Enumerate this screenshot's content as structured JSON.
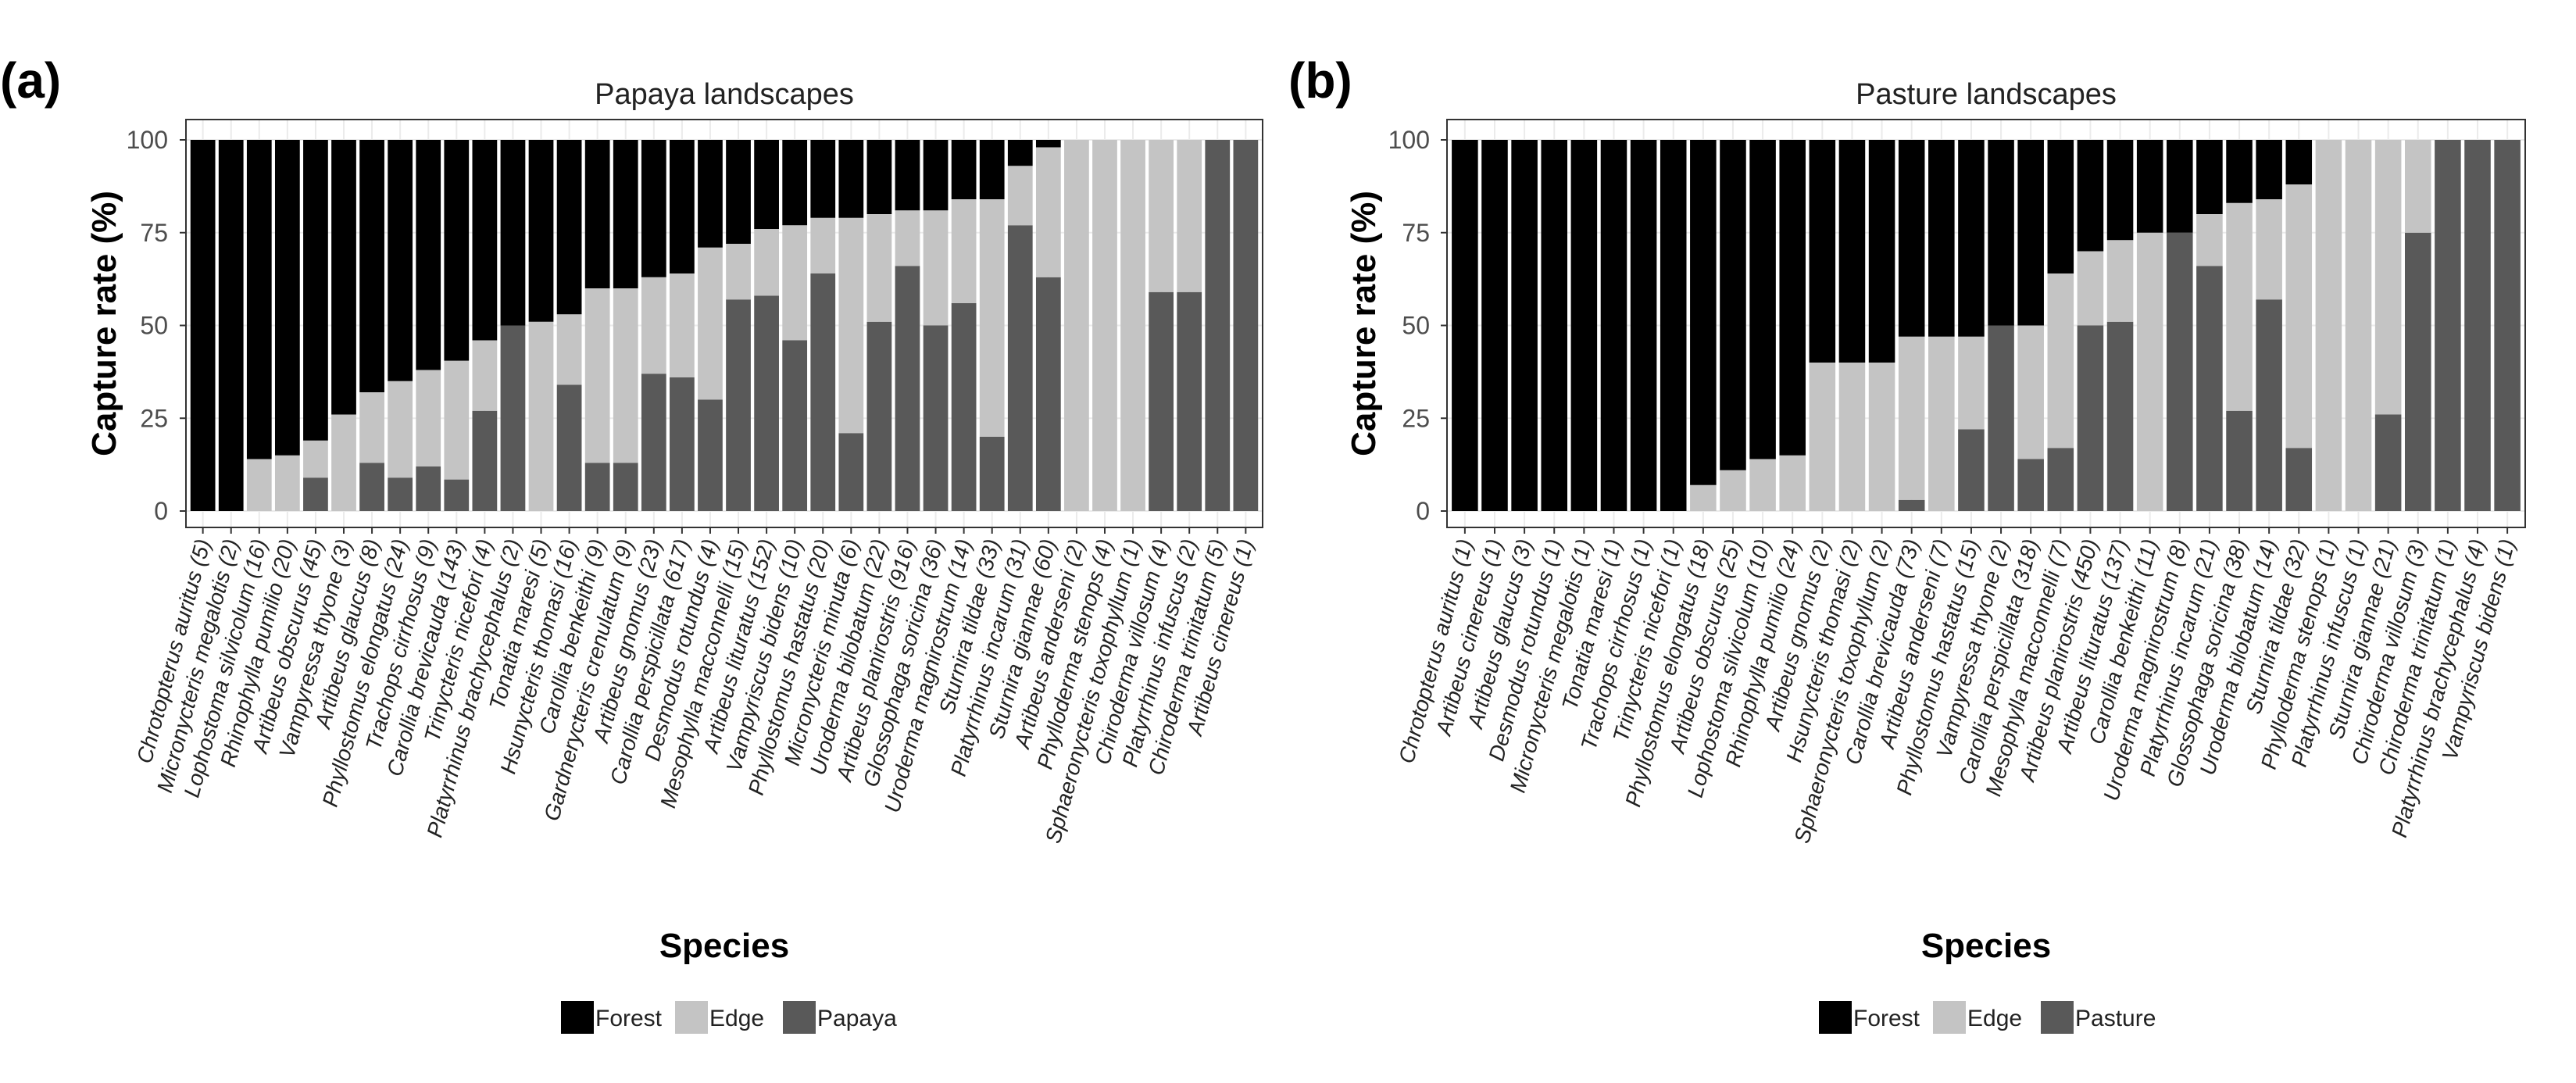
{
  "colors": {
    "Forest": "#000000",
    "Edge": "#c4c4c4",
    "Papaya": "#595959",
    "Pasture": "#595959"
  },
  "chart_data": [
    {
      "type": "bar",
      "stacked": true,
      "panel_label": "(a)",
      "title": "Papaya landscapes",
      "xlabel": "Species",
      "ylabel": "Capture rate (%)",
      "ylim": [
        0,
        100
      ],
      "yticks": [
        "0",
        "25",
        "50",
        "75",
        "100"
      ],
      "legend_position": "bottom",
      "legend": [
        "Forest",
        "Edge",
        "Papaya"
      ],
      "categories": [
        "Chrotopterus auritus (5)",
        "Micronycteris megalotis (2)",
        "Lophostoma silvicolum (16)",
        "Rhinophylla pumilio (20)",
        "Artibeus obscurus (45)",
        "Vampyressa thyone (3)",
        "Artibeus glaucus (8)",
        "Phyllostomus elongatus (24)",
        "Trachops cirrhosus (9)",
        "Carollia brevicauda (143)",
        "Trinycteris nicefori (4)",
        "Platyrrhinus brachycephalus (2)",
        "Tonatia maresi (5)",
        "Hsunycteris thomasi (16)",
        "Carollia benkeithi (9)",
        "Gardnerycteris crenulatum (9)",
        "Artibeus gnomus (23)",
        "Carollia perspicillata (617)",
        "Desmodus rotundus (4)",
        "Mesophylla macconnelli (15)",
        "Artibeus lituratus (152)",
        "Vampyriscus bidens (10)",
        "Phyllostomus hastatus (20)",
        "Micronycteris minuta (6)",
        "Uroderma bilobatum (22)",
        "Artibeus planirostris (916)",
        "Glossophaga soricina (36)",
        "Uroderma magnirostrum (14)",
        "Sturnira tildae (33)",
        "Platyrrhinus incarum (31)",
        "Sturnira giannae (60)",
        "Artibeus anderseni (2)",
        "Phylloderma stenops (4)",
        "Sphaeronycteris toxophyllum (1)",
        "Chiroderma villosum (4)",
        "Platyrrhinus infuscus (2)",
        "Chiroderma trinitatum (5)",
        "Artibeus cinereus (1)"
      ],
      "series": [
        {
          "name": "Papaya",
          "values": [
            0,
            0,
            0,
            0,
            9,
            0,
            13,
            9,
            12,
            8.5,
            27,
            50,
            0,
            34,
            13,
            13,
            37,
            36,
            30,
            57,
            58,
            46,
            64,
            21,
            51,
            66,
            50,
            56,
            20,
            77,
            63,
            0,
            0,
            0,
            59,
            59,
            100,
            100
          ]
        },
        {
          "name": "Edge",
          "values": [
            0,
            0,
            14,
            15,
            10,
            26,
            19,
            26,
            26,
            32,
            19,
            0,
            51,
            19,
            47,
            47,
            26,
            28,
            41,
            15,
            18,
            31,
            15,
            58,
            29,
            15,
            31,
            28,
            64,
            16,
            35,
            100,
            100,
            100,
            41,
            41,
            0,
            0
          ]
        },
        {
          "name": "Forest",
          "values": [
            100,
            100,
            86,
            85,
            81,
            74,
            68,
            65,
            62,
            59.5,
            54,
            50,
            49,
            47,
            40,
            40,
            37,
            36,
            29,
            28,
            24,
            23,
            21,
            21,
            20,
            19,
            19,
            16,
            16,
            7,
            2,
            0,
            0,
            0,
            0,
            0,
            0,
            0
          ]
        }
      ]
    },
    {
      "type": "bar",
      "stacked": true,
      "panel_label": "(b)",
      "title": "Pasture landscapes",
      "xlabel": "Species",
      "ylabel": "Capture rate (%)",
      "ylim": [
        0,
        100
      ],
      "yticks": [
        "0",
        "25",
        "50",
        "75",
        "100"
      ],
      "legend_position": "bottom",
      "legend": [
        "Forest",
        "Edge",
        "Pasture"
      ],
      "categories": [
        "Chrotopterus auritus (1)",
        "Artibeus cinereus (1)",
        "Artibeus glaucus (3)",
        "Desmodus rotundus (1)",
        "Micronycteris megalotis (1)",
        "Tonatia maresi (1)",
        "Trachops cirrhosus (1)",
        "Trinycteris nicefori (1)",
        "Phyllostomus elongatus (18)",
        "Artibeus obscurus (25)",
        "Lophostoma silvicolum (10)",
        "Rhinophylla pumilio (24)",
        "Artibeus gnomus (2)",
        "Hsunycteris thomasi (2)",
        "Sphaeronycteris toxophyllum (2)",
        "Carollia brevicauda (73)",
        "Artibeus anderseni (7)",
        "Phyllostomus hastatus (15)",
        "Vampyressa thyone (2)",
        "Carollia perspicillata (318)",
        "Mesophylla macconnelli (7)",
        "Artibeus planirostris (450)",
        "Artibeus lituratus (137)",
        "Carollia benkeithi (11)",
        "Uroderma magnirostrum (8)",
        "Platyrrhinus incarum (21)",
        "Glossophaga soricina (38)",
        "Uroderma bilobatum (14)",
        "Sturnira tildae (32)",
        "Phylloderma stenops (1)",
        "Platyrrhinus infuscus (1)",
        "Sturnira giannae (21)",
        "Chiroderma villosum (3)",
        "Chiroderma trinitatum (1)",
        "Platyrrhinus brachycephalus (4)",
        "Vampyriscus bidens (1)"
      ],
      "series": [
        {
          "name": "Pasture",
          "values": [
            0,
            0,
            0,
            0,
            0,
            0,
            0,
            0,
            0,
            0,
            0,
            0,
            0,
            0,
            0,
            3,
            0,
            22,
            50,
            14,
            17,
            50,
            51,
            0,
            75,
            66,
            27,
            57,
            17,
            0,
            0,
            26,
            75,
            100,
            100,
            100
          ]
        },
        {
          "name": "Edge",
          "values": [
            0,
            0,
            0,
            0,
            0,
            0,
            0,
            0,
            7,
            11,
            14,
            15,
            40,
            40,
            40,
            44,
            47,
            25,
            0,
            36,
            47,
            20,
            22,
            75,
            0,
            14,
            56,
            27,
            71,
            100,
            100,
            74,
            25,
            0,
            0,
            0
          ]
        },
        {
          "name": "Forest",
          "values": [
            100,
            100,
            100,
            100,
            100,
            100,
            100,
            100,
            93,
            89,
            86,
            85,
            60,
            60,
            60,
            53,
            53,
            53,
            50,
            50,
            36,
            30,
            27,
            25,
            25,
            20,
            17,
            16,
            12,
            0,
            0,
            0,
            0,
            0,
            0,
            0
          ]
        }
      ]
    }
  ]
}
